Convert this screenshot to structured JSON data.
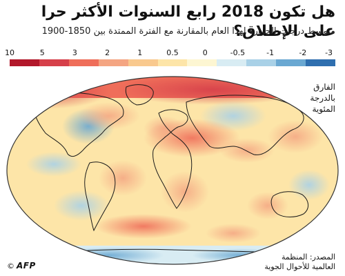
{
  "title": "هل تكون 2018 رابع السنوات الأكثر حرا على الإطلاق؟",
  "subtitle": "متوسط درجات الحرارة لهذا العام بالمقارنة مع الفترة الممتدة بين 1850-1900",
  "legend": {
    "title": "الفارق بالدرجة المئوية",
    "labels": [
      "10",
      "5",
      "3",
      "2",
      "1",
      "0.5",
      "0",
      "-0.5",
      "-1",
      "-2",
      "-3"
    ],
    "colors": [
      "#b2182b",
      "#d6404a",
      "#ef6e5a",
      "#f4a582",
      "#f9c98e",
      "#fde5a8",
      "#fdf6d2",
      "#d8ecf3",
      "#a9d1e7",
      "#6aa8d2",
      "#2f6faf"
    ]
  },
  "source": {
    "line1": "المصدر: المنظمة",
    "line2": "العالمية للأحوال الجوية"
  },
  "credit": {
    "copyright": "©",
    "agency": "AFP"
  }
}
